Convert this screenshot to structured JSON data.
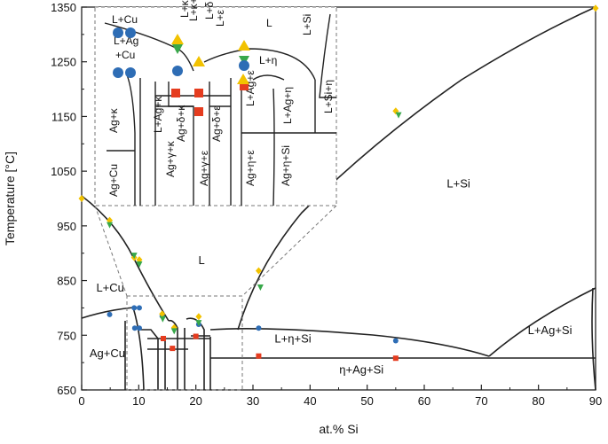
{
  "chart_data": {
    "type": "scatter",
    "xlabel": "at.% Si",
    "ylabel": "Temperature [°C]",
    "xlim": [
      0,
      90
    ],
    "ylim": [
      650,
      1350
    ],
    "xticks": [
      0,
      10,
      20,
      30,
      40,
      50,
      60,
      70,
      80,
      90
    ],
    "yticks": [
      650,
      750,
      850,
      950,
      1050,
      1150,
      1250,
      1350
    ],
    "grid": false,
    "region_labels": [
      {
        "text": "L",
        "x": 21,
        "y": 880
      },
      {
        "text": "L+Si",
        "x": 66,
        "y": 1020
      },
      {
        "text": "L+Cu",
        "x": 5,
        "y": 830
      },
      {
        "text": "Ag+Cu",
        "x": 4.5,
        "y": 710
      },
      {
        "text": "L+η+Si",
        "x": 37,
        "y": 737
      },
      {
        "text": "η+Ag+Si",
        "x": 49,
        "y": 680
      },
      {
        "text": "L+Ag+Si",
        "x": 82,
        "y": 752
      }
    ],
    "inset_labels": [
      "L+Cu",
      "L+κ",
      "L+κ+Cu",
      "L+δ",
      "L+ε",
      "L",
      "L+Si",
      "L+Ag",
      "+Cu",
      "L+η",
      "Ag+κ",
      "L+Ag+κ",
      "Ag+γ+κ",
      "Ag+δ+κ",
      "Ag+δ+ε",
      "Ag+γ+ε",
      "L+Ag+ε",
      "Ag+η+ε",
      "L+Ag+η",
      "Ag+η+Si",
      "L+Si+η",
      "Ag+Cu"
    ],
    "series": [
      {
        "marker": "blue-circle",
        "color": "#2e6db5",
        "points": [
          [
            4.9,
            788
          ],
          [
            9.2,
            800
          ],
          [
            10.1,
            800
          ],
          [
            9.3,
            763
          ],
          [
            10.1,
            763
          ],
          [
            14.1,
            785
          ],
          [
            20.5,
            770
          ],
          [
            31.0,
            763
          ],
          [
            55.0,
            740
          ]
        ]
      },
      {
        "marker": "red-square",
        "color": "#e53c1f",
        "points": [
          [
            14.3,
            744
          ],
          [
            15.9,
            726
          ],
          [
            20.0,
            748
          ],
          [
            31.0,
            712
          ],
          [
            55.0,
            708
          ]
        ]
      },
      {
        "marker": "yellow-diamond",
        "color": "#f2c200",
        "points": [
          [
            0,
            1000
          ],
          [
            4.9,
            960
          ],
          [
            9.2,
            892
          ],
          [
            10.1,
            888
          ],
          [
            14.1,
            789
          ],
          [
            16.2,
            764
          ],
          [
            20.5,
            784
          ],
          [
            31.0,
            868
          ],
          [
            55.0,
            1160
          ],
          [
            90,
            1348
          ]
        ]
      },
      {
        "marker": "green-triangle",
        "color": "#38a84a",
        "points": [
          [
            4.9,
            952
          ],
          [
            9.2,
            896
          ],
          [
            10.1,
            880
          ],
          [
            14.2,
            780
          ],
          [
            16.2,
            758
          ],
          [
            20.5,
            773
          ],
          [
            31.3,
            838
          ],
          [
            55.5,
            1153
          ]
        ]
      }
    ]
  },
  "colors": {
    "line": "#222222",
    "inset_box": "#777777"
  }
}
